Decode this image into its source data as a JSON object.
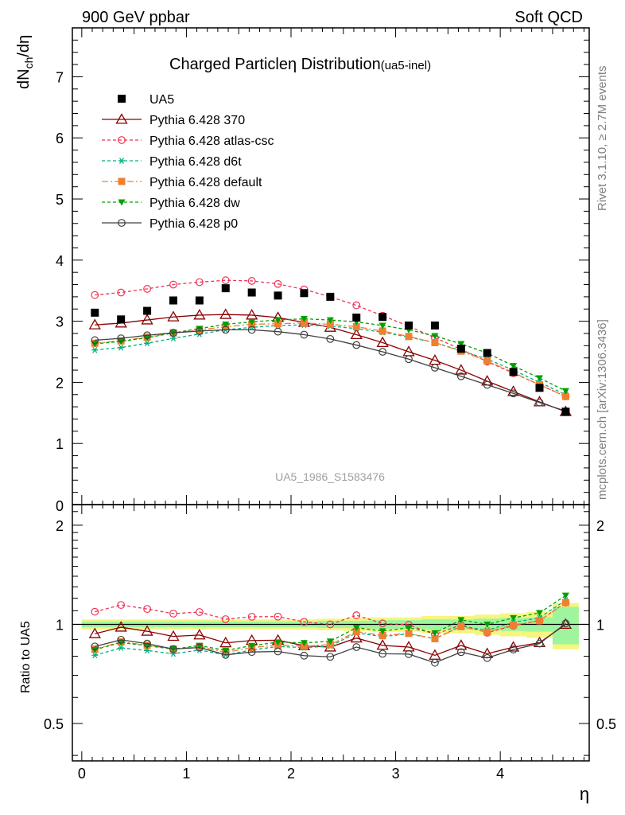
{
  "header": {
    "left": "900 GeV ppbar",
    "right": "Soft QCD"
  },
  "side_labels": {
    "rivet": "Rivet 3.1.10, ≥ 2.7M events",
    "mcplots": "mcplots.cern.ch [arXiv:1306.3436]"
  },
  "chart_data": {
    "type": "line",
    "title": "Charged Particle",
    "title_symbol": "η",
    "title_tail": " Distribution",
    "title_sub": "(ua5-inel)",
    "watermark": "UA5_1986_S1583476",
    "ylabel": {
      "base": "dN",
      "sub": "ch",
      "tail": "/dη"
    },
    "xlabel": "η",
    "ratio_ylabel": "Ratio to UA5",
    "xlim": [
      -0.09,
      4.85
    ],
    "ylim": [
      0,
      7.8
    ],
    "ratio_ylim": [
      0.385,
      2.31
    ],
    "ratio_log_scale": true,
    "x_ticks": [
      0,
      1,
      2,
      3,
      4
    ],
    "y_ticks": [
      1,
      2,
      3,
      4,
      5,
      6,
      7
    ],
    "ratio_ticks": [
      0.5,
      1,
      2
    ],
    "ratio_tick_labels": [
      "0.5",
      "1",
      "2"
    ],
    "legend_position": "top-left",
    "x": [
      0.125,
      0.375,
      0.625,
      0.875,
      1.125,
      1.375,
      1.625,
      1.875,
      2.125,
      2.375,
      2.625,
      2.875,
      3.125,
      3.375,
      3.625,
      3.875,
      4.125,
      4.375,
      4.625
    ],
    "reference": {
      "name": "UA5",
      "color": "#000000",
      "values": [
        3.14,
        3.03,
        3.17,
        3.34,
        3.34,
        3.54,
        3.47,
        3.42,
        3.46,
        3.4,
        3.06,
        3.07,
        2.93,
        2.93,
        2.55,
        2.48,
        2.17,
        1.91,
        1.52
      ],
      "band_yellow": [
        0.035,
        0.035,
        0.035,
        0.035,
        0.035,
        0.035,
        0.035,
        0.035,
        0.035,
        0.04,
        0.045,
        0.05,
        0.05,
        0.06,
        0.06,
        0.07,
        0.08,
        0.09,
        0.16
      ],
      "band_green": [
        0.02,
        0.02,
        0.02,
        0.02,
        0.02,
        0.02,
        0.02,
        0.02,
        0.02,
        0.025,
        0.025,
        0.03,
        0.03,
        0.035,
        0.035,
        0.04,
        0.045,
        0.05,
        0.13
      ]
    },
    "series": [
      {
        "name": "Pythia 6.428 370",
        "color": "#8b0000",
        "dash": "",
        "marker": "triangle-open",
        "values": [
          2.94,
          2.97,
          3.02,
          3.07,
          3.1,
          3.11,
          3.1,
          3.06,
          2.98,
          2.9,
          2.78,
          2.65,
          2.5,
          2.36,
          2.2,
          2.02,
          1.85,
          1.68,
          1.52
        ]
      },
      {
        "name": "Pythia 6.428 atlas-csc",
        "color": "#ee3355",
        "dash": "4 3",
        "marker": "circle-open",
        "values": [
          3.43,
          3.47,
          3.53,
          3.6,
          3.64,
          3.67,
          3.66,
          3.61,
          3.52,
          3.4,
          3.26,
          3.09,
          2.92,
          2.73,
          2.54,
          2.34,
          2.15,
          1.96,
          1.77
        ]
      },
      {
        "name": "Pythia 6.428 d6t",
        "color": "#00b080",
        "dash": "4 3",
        "marker": "asterisk",
        "values": [
          2.53,
          2.57,
          2.64,
          2.72,
          2.79,
          2.86,
          2.9,
          2.93,
          2.94,
          2.92,
          2.88,
          2.82,
          2.74,
          2.65,
          2.52,
          2.38,
          2.2,
          2.0,
          1.8
        ]
      },
      {
        "name": "Pythia 6.428 default",
        "color": "#f08030",
        "dash": "8 3 2 3",
        "marker": "square-filled",
        "values": [
          2.64,
          2.68,
          2.74,
          2.81,
          2.86,
          2.91,
          2.95,
          2.96,
          2.97,
          2.95,
          2.91,
          2.84,
          2.75,
          2.65,
          2.51,
          2.35,
          2.16,
          1.96,
          1.77
        ]
      },
      {
        "name": "Pythia 6.428 dw",
        "color": "#00a000",
        "dash": "4 3",
        "marker": "triangle-down-filled",
        "values": [
          2.63,
          2.67,
          2.73,
          2.81,
          2.88,
          2.95,
          2.99,
          3.02,
          3.04,
          3.02,
          2.99,
          2.93,
          2.86,
          2.76,
          2.63,
          2.48,
          2.27,
          2.07,
          1.86
        ]
      },
      {
        "name": "Pythia 6.428 p0",
        "color": "#404040",
        "dash": "",
        "marker": "circle-open",
        "values": [
          2.69,
          2.72,
          2.77,
          2.81,
          2.84,
          2.86,
          2.86,
          2.83,
          2.78,
          2.71,
          2.61,
          2.5,
          2.38,
          2.24,
          2.1,
          1.96,
          1.82,
          1.67,
          1.53
        ]
      }
    ]
  }
}
